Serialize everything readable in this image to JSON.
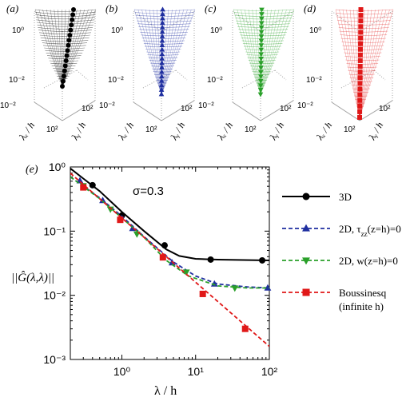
{
  "panels_top": [
    {
      "letter": "(a)",
      "color": "#000000",
      "marker": "circle",
      "ticks_z": [
        "10⁰",
        "10⁻²"
      ],
      "tick_x": "10²",
      "tick_y": "10²",
      "xlabel": "λₓ / h",
      "ylabel": "λᵧ / h"
    },
    {
      "letter": "(b)",
      "color": "#1f2fa0",
      "marker": "triangle-up",
      "ticks_z": [
        "10⁰",
        "10⁻²"
      ],
      "tick_x": "10²",
      "tick_y": "10²",
      "xlabel": "λₓ / h",
      "ylabel": "λᵧ / h"
    },
    {
      "letter": "(c)",
      "color": "#2aa02a",
      "marker": "triangle-down",
      "ticks_z": [
        "10⁰",
        "10⁻²"
      ],
      "tick_x": "10²",
      "tick_y": "10²",
      "xlabel": "λₓ / h",
      "ylabel": "λᵧ / h"
    },
    {
      "letter": "(d)",
      "color": "#e01818",
      "marker": "square",
      "ticks_z": [
        "10⁰",
        "10⁻²"
      ],
      "tick_x": "10²",
      "tick_y": "10²",
      "xlabel": "λₓ / h",
      "ylabel": "λᵧ / h"
    }
  ],
  "main": {
    "letter": "(e)",
    "annotation": "σ=0.3",
    "ylabel": "||Ĝ(λ,λ)||",
    "xlabel": "λ / h"
  },
  "chart_data": {
    "type": "line",
    "xscale": "log",
    "yscale": "log",
    "xlim": [
      0.2,
      100
    ],
    "ylim": [
      0.001,
      1
    ],
    "xticks": [
      {
        "v": 1,
        "label": "10⁰"
      },
      {
        "v": 10,
        "label": "10¹"
      },
      {
        "v": 100,
        "label": "10²"
      }
    ],
    "yticks": [
      {
        "v": 0.001,
        "label": "10⁻³"
      },
      {
        "v": 0.01,
        "label": "10⁻²"
      },
      {
        "v": 0.1,
        "label": "10⁻¹"
      },
      {
        "v": 1,
        "label": "10⁰"
      }
    ],
    "legend_position": "right",
    "series": [
      {
        "name": "3D",
        "color": "#000000",
        "marker": "circle",
        "dash": "solid",
        "line": [
          [
            0.2,
            0.95
          ],
          [
            0.3,
            0.66
          ],
          [
            0.5,
            0.42
          ],
          [
            1,
            0.2
          ],
          [
            2,
            0.1
          ],
          [
            4,
            0.052
          ],
          [
            6,
            0.041
          ],
          [
            10,
            0.037
          ],
          [
            20,
            0.036
          ],
          [
            100,
            0.035
          ]
        ],
        "markers": [
          [
            0.4,
            0.52
          ],
          [
            1,
            0.175
          ],
          [
            3.8,
            0.06
          ],
          [
            16,
            0.036
          ],
          [
            80,
            0.035
          ]
        ]
      },
      {
        "name": "2D, τzz(z=h)=0",
        "name_main": "2D, τ",
        "name_sub": "zz",
        "name_tail": "(z=h)=0",
        "color": "#1f2fa0",
        "marker": "triangle-up",
        "dash": "dashed",
        "line": [
          [
            0.2,
            0.7
          ],
          [
            0.5,
            0.33
          ],
          [
            1,
            0.17
          ],
          [
            2,
            0.082
          ],
          [
            5,
            0.033
          ],
          [
            10,
            0.02
          ],
          [
            20,
            0.015
          ],
          [
            50,
            0.0135
          ],
          [
            100,
            0.013
          ]
        ],
        "markers": [
          [
            0.27,
            0.61
          ],
          [
            0.55,
            0.3
          ],
          [
            1.4,
            0.11
          ],
          [
            4.8,
            0.032
          ],
          [
            18,
            0.015
          ],
          [
            95,
            0.013
          ]
        ]
      },
      {
        "name": "2D, w(z=h)=0",
        "color": "#2aa02a",
        "marker": "triangle-down",
        "dash": "dashed",
        "line": [
          [
            0.2,
            0.7
          ],
          [
            0.5,
            0.32
          ],
          [
            1,
            0.16
          ],
          [
            2,
            0.08
          ],
          [
            4,
            0.035
          ],
          [
            8,
            0.02
          ],
          [
            20,
            0.014
          ],
          [
            50,
            0.013
          ],
          [
            100,
            0.013
          ]
        ],
        "markers": [
          [
            0.3,
            0.51
          ],
          [
            0.7,
            0.22
          ],
          [
            1.6,
            0.09
          ],
          [
            7.5,
            0.023
          ],
          [
            34,
            0.013
          ]
        ]
      },
      {
        "name": "Boussinesq (infinite h)",
        "name_line1": "Boussinesq",
        "name_line2": "(infinite h)",
        "color": "#e01818",
        "marker": "square",
        "dash": "dashed",
        "line": [
          [
            0.2,
            0.8
          ],
          [
            100,
            0.0016
          ]
        ],
        "markers": [
          [
            0.3,
            0.48
          ],
          [
            0.95,
            0.15
          ],
          [
            3.6,
            0.039
          ],
          [
            12.5,
            0.0105
          ],
          [
            47,
            0.003
          ]
        ]
      }
    ]
  }
}
